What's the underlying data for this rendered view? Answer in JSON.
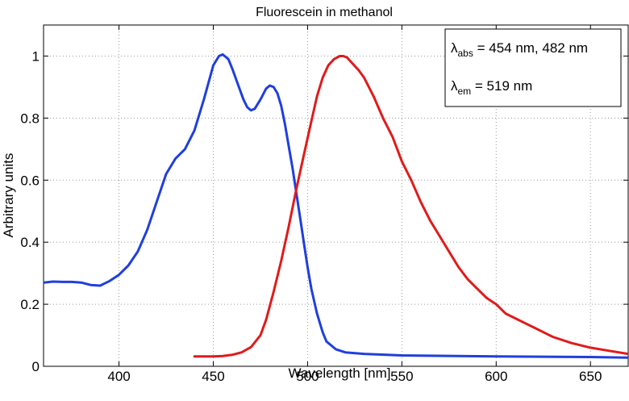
{
  "chart_data": {
    "type": "line",
    "title": "Fluorescein in methanol",
    "xlabel": "Wavelength [nm]",
    "ylabel": "Arbitrary units",
    "xlim": [
      360,
      670
    ],
    "ylim": [
      0,
      1.1
    ],
    "xticks": [
      400,
      450,
      500,
      550,
      600,
      650
    ],
    "yticks": [
      0,
      0.2,
      0.4,
      0.6,
      0.8,
      1
    ],
    "xtick_labels": [
      "400",
      "450",
      "500",
      "550",
      "600",
      "650"
    ],
    "ytick_labels": [
      "0",
      "0.2",
      "0.4",
      "0.6",
      "0.8",
      "1"
    ],
    "grid": true,
    "annotation": {
      "position": "top-right",
      "lines": [
        {
          "symbol": "λ",
          "sub": "abs",
          "text": " = 454 nm, 482 nm"
        },
        {
          "symbol": "λ",
          "sub": "em",
          "text": " = 519 nm"
        }
      ]
    },
    "series": [
      {
        "color": "#1f3fdd",
        "x": [
          360,
          365,
          370,
          375,
          380,
          385,
          390,
          395,
          400,
          405,
          410,
          415,
          420,
          425,
          430,
          435,
          440,
          445,
          450,
          453,
          455,
          458,
          460,
          463,
          466,
          468,
          470,
          472,
          475,
          478,
          480,
          482,
          484,
          486,
          488,
          490,
          492,
          494,
          496,
          498,
          500,
          502,
          505,
          508,
          510,
          515,
          520,
          530,
          550,
          600,
          650,
          670
        ],
        "y": [
          0.27,
          0.273,
          0.272,
          0.272,
          0.27,
          0.262,
          0.26,
          0.275,
          0.295,
          0.325,
          0.37,
          0.44,
          0.53,
          0.62,
          0.67,
          0.7,
          0.76,
          0.86,
          0.97,
          1.0,
          1.005,
          0.99,
          0.96,
          0.91,
          0.86,
          0.835,
          0.825,
          0.83,
          0.86,
          0.895,
          0.905,
          0.9,
          0.88,
          0.84,
          0.78,
          0.71,
          0.64,
          0.56,
          0.48,
          0.4,
          0.32,
          0.25,
          0.17,
          0.11,
          0.08,
          0.055,
          0.045,
          0.04,
          0.035,
          0.032,
          0.03,
          0.028
        ]
      },
      {
        "color": "#e01b1b",
        "x": [
          440,
          450,
          455,
          460,
          465,
          470,
          475,
          478,
          482,
          486,
          490,
          494,
          498,
          502,
          505,
          508,
          511,
          514,
          517,
          519,
          521,
          524,
          527,
          530,
          535,
          540,
          545,
          550,
          555,
          560,
          565,
          570,
          575,
          580,
          585,
          590,
          595,
          600,
          605,
          610,
          615,
          620,
          625,
          630,
          640,
          650,
          660,
          670
        ],
        "y": [
          0.032,
          0.032,
          0.033,
          0.037,
          0.045,
          0.062,
          0.1,
          0.15,
          0.24,
          0.34,
          0.45,
          0.57,
          0.68,
          0.79,
          0.87,
          0.93,
          0.97,
          0.99,
          1.0,
          1.0,
          0.995,
          0.975,
          0.955,
          0.93,
          0.87,
          0.8,
          0.74,
          0.66,
          0.6,
          0.53,
          0.47,
          0.42,
          0.37,
          0.32,
          0.28,
          0.25,
          0.22,
          0.2,
          0.17,
          0.155,
          0.14,
          0.125,
          0.11,
          0.095,
          0.075,
          0.06,
          0.05,
          0.04
        ]
      }
    ]
  }
}
